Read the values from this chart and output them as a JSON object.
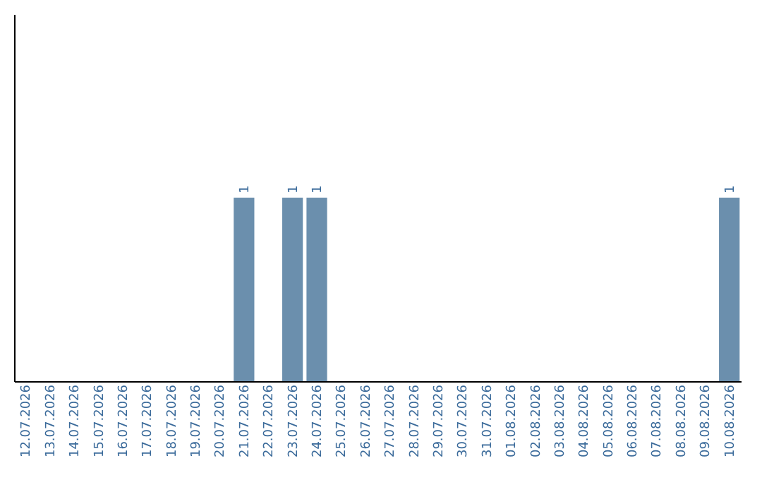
{
  "chart_data": {
    "type": "bar",
    "categories": [
      "12.07.2026",
      "13.07.2026",
      "14.07.2026",
      "15.07.2026",
      "16.07.2026",
      "17.07.2026",
      "18.07.2026",
      "19.07.2026",
      "20.07.2026",
      "21.07.2026",
      "22.07.2026",
      "23.07.2026",
      "24.07.2026",
      "25.07.2026",
      "26.07.2026",
      "27.07.2026",
      "28.07.2026",
      "29.07.2026",
      "30.07.2026",
      "31.07.2026",
      "01.08.2026",
      "02.08.2026",
      "03.08.2026",
      "04.08.2026",
      "05.08.2026",
      "06.08.2026",
      "07.08.2026",
      "08.08.2026",
      "09.08.2026",
      "10.08.2026"
    ],
    "values": [
      0,
      0,
      0,
      0,
      0,
      0,
      0,
      0,
      0,
      1,
      0,
      1,
      1,
      0,
      0,
      0,
      0,
      0,
      0,
      0,
      0,
      0,
      0,
      0,
      0,
      0,
      0,
      0,
      0,
      1
    ],
    "value_labels": [
      null,
      null,
      null,
      null,
      null,
      null,
      null,
      null,
      null,
      "1",
      null,
      "1",
      "1",
      null,
      null,
      null,
      null,
      null,
      null,
      null,
      null,
      null,
      null,
      null,
      null,
      null,
      null,
      null,
      null,
      "1"
    ],
    "color": "#6b8fad",
    "ylim": [
      0,
      2
    ],
    "tick_labels": "x",
    "grid": false
  }
}
